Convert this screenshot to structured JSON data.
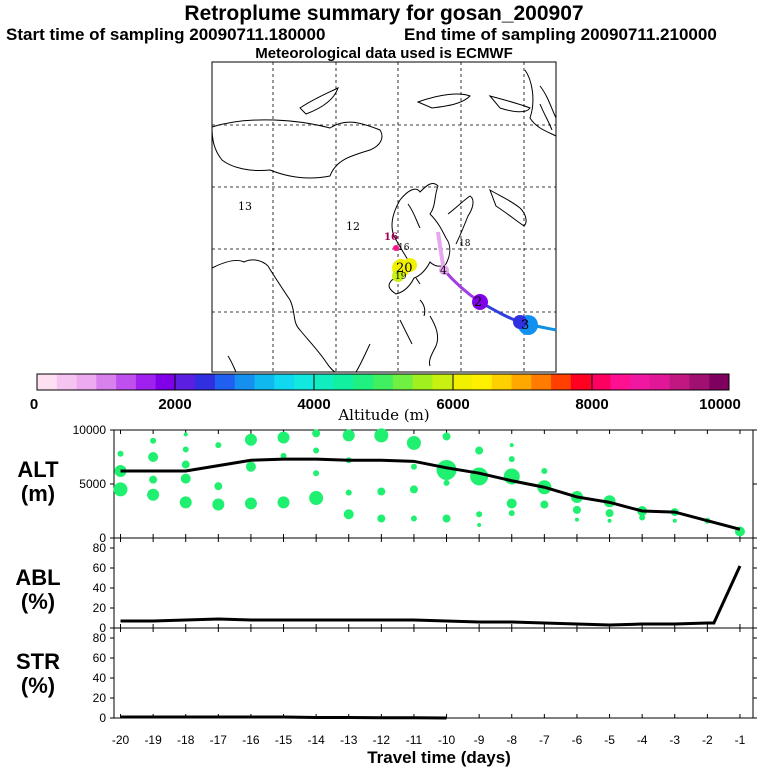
{
  "header": {
    "title": "Retroplume summary for gosan_200907",
    "start": "Start time of sampling 20090711.180000",
    "end": "End time of sampling 20090711.210000",
    "met": "Meteorological data used is ECMWF"
  },
  "map": {
    "grid_numbers": [
      "13",
      "12",
      "16"
    ],
    "day_markers": [
      "16",
      "20",
      "19",
      "4",
      "2",
      "3",
      "18"
    ]
  },
  "colorbar": {
    "ticks": [
      "0",
      "2000",
      "4000",
      "6000",
      "8000",
      "10000"
    ],
    "label": "Altitude (m)",
    "colors": [
      "#fde0f2",
      "#f6c4f0",
      "#eeaaf0",
      "#d880ee",
      "#c050ee",
      "#a020f0",
      "#8000e8",
      "#5a1fe0",
      "#3030e0",
      "#2060f0",
      "#1590f0",
      "#10b8f0",
      "#10d8f0",
      "#10e8e0",
      "#10eec0",
      "#10f0a0",
      "#20f080",
      "#40f060",
      "#70f040",
      "#a0f020",
      "#c8f010",
      "#f0f000",
      "#fff000",
      "#ffd000",
      "#ffa800",
      "#ff7c00",
      "#ff4000",
      "#ff0020",
      "#ff0060",
      "#ff1090",
      "#f018a0",
      "#e01898",
      "#c01880",
      "#a01070",
      "#800060"
    ]
  },
  "chart_data": [
    {
      "type": "line",
      "panel": "ALT",
      "ylabel": "ALT\n(m)",
      "ylim": [
        0,
        10000
      ],
      "yticks": [
        "10000",
        "5000",
        "0"
      ],
      "x": [
        -20,
        -19,
        -18,
        -17,
        -16,
        -15,
        -14,
        -13,
        -12,
        -11,
        -10,
        -9,
        -8,
        -7,
        -6,
        -5,
        -4,
        -3,
        -2,
        -1
      ],
      "values": [
        6200,
        6200,
        6200,
        6700,
        7200,
        7300,
        7300,
        7200,
        7200,
        7100,
        6500,
        6000,
        5300,
        4700,
        3800,
        3300,
        2500,
        2400,
        1600,
        800
      ],
      "dots": [
        [
          -20,
          6200,
          6
        ],
        [
          -20,
          4500,
          7
        ],
        [
          -20,
          7800,
          3
        ],
        [
          -19,
          4000,
          6
        ],
        [
          -19,
          5400,
          4
        ],
        [
          -19,
          7500,
          5
        ],
        [
          -19,
          9000,
          3
        ],
        [
          -18,
          3300,
          6
        ],
        [
          -18,
          5500,
          5
        ],
        [
          -18,
          6800,
          4
        ],
        [
          -18,
          8200,
          3
        ],
        [
          -18,
          9600,
          2
        ],
        [
          -17,
          3100,
          6
        ],
        [
          -17,
          4800,
          4
        ],
        [
          -17,
          8600,
          3
        ],
        [
          -16,
          3200,
          6
        ],
        [
          -16,
          6600,
          5
        ],
        [
          -16,
          9100,
          6
        ],
        [
          -15,
          3300,
          6
        ],
        [
          -15,
          9300,
          6
        ],
        [
          -15,
          7600,
          3
        ],
        [
          -14,
          3700,
          7
        ],
        [
          -14,
          6000,
          3
        ],
        [
          -14,
          9700,
          4
        ],
        [
          -14,
          8100,
          3
        ],
        [
          -13,
          2200,
          5
        ],
        [
          -13,
          4200,
          3
        ],
        [
          -13,
          9500,
          6
        ],
        [
          -13,
          7200,
          3
        ],
        [
          -12,
          1800,
          4
        ],
        [
          -12,
          4300,
          4
        ],
        [
          -12,
          9500,
          7
        ],
        [
          -11,
          4500,
          4
        ],
        [
          -11,
          1800,
          3
        ],
        [
          -11,
          8800,
          7
        ],
        [
          -11,
          6600,
          3
        ],
        [
          -10,
          6300,
          10
        ],
        [
          -10,
          1800,
          4
        ],
        [
          -10,
          9400,
          4
        ],
        [
          -10,
          5100,
          3
        ],
        [
          -9,
          5700,
          9
        ],
        [
          -9,
          8100,
          4
        ],
        [
          -9,
          2200,
          3
        ],
        [
          -9,
          1200,
          2
        ],
        [
          -8,
          5700,
          8
        ],
        [
          -8,
          3200,
          5
        ],
        [
          -8,
          2300,
          3
        ],
        [
          -8,
          7300,
          3
        ],
        [
          -8,
          8600,
          2
        ],
        [
          -7,
          4700,
          7
        ],
        [
          -7,
          3100,
          4
        ],
        [
          -7,
          6200,
          3
        ],
        [
          -6,
          3800,
          6
        ],
        [
          -6,
          2600,
          4
        ],
        [
          -6,
          1700,
          2
        ],
        [
          -5,
          3400,
          6
        ],
        [
          -5,
          2300,
          4
        ],
        [
          -5,
          1600,
          2
        ],
        [
          -4,
          2500,
          5
        ],
        [
          -4,
          1900,
          3
        ],
        [
          -3,
          2400,
          4
        ],
        [
          -3,
          1600,
          2
        ],
        [
          -2,
          1600,
          3
        ],
        [
          -1,
          600,
          5
        ]
      ]
    },
    {
      "type": "line",
      "panel": "ABL",
      "ylabel": "ABL\n(%)",
      "ylim": [
        0,
        90
      ],
      "yticks": [
        "80",
        "60",
        "40",
        "20",
        "0"
      ],
      "x": [
        -20,
        -19,
        -18,
        -17,
        -16,
        -15,
        -14,
        -13,
        -12,
        -11,
        -10,
        -9,
        -8,
        -7,
        -6,
        -5,
        -4,
        -3,
        -2,
        -1.8,
        -1
      ],
      "values": [
        7,
        7,
        8,
        9,
        8,
        8,
        8,
        8,
        8,
        8,
        7,
        6,
        6,
        5,
        4,
        3,
        4,
        4,
        5,
        5,
        62
      ]
    },
    {
      "type": "line",
      "panel": "STR",
      "ylabel": "STR\n(%)",
      "ylim": [
        0,
        90
      ],
      "yticks": [
        "80",
        "60",
        "40",
        "20",
        "0"
      ],
      "x": [
        -20,
        -19,
        -18,
        -17,
        -16,
        -15,
        -14,
        -13,
        -12,
        -11,
        -10
      ],
      "values": [
        1,
        1,
        1,
        1,
        1,
        1,
        0.5,
        0.5,
        0.3,
        0.3,
        0
      ],
      "xlabel": "Travel time (days)",
      "xticks": [
        "-20",
        "-19",
        "-18",
        "-17",
        "-16",
        "-15",
        "-14",
        "-13",
        "-12",
        "-11",
        "-10",
        "-9",
        "-8",
        "-7",
        "-6",
        "-5",
        "-4",
        "-3",
        "-2",
        "-1"
      ]
    }
  ]
}
